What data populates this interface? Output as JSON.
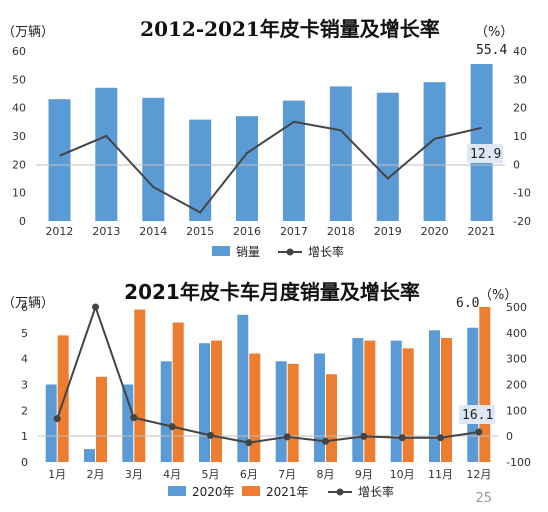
{
  "chart_data": [
    {
      "type": "bar+line",
      "title": "2012-2021年皮卡销量及增长率",
      "left_unit": "（万辆）",
      "right_unit": "（%）",
      "categories": [
        "2012",
        "2013",
        "2014",
        "2015",
        "2016",
        "2017",
        "2018",
        "2019",
        "2020",
        "2021"
      ],
      "series": [
        {
          "name": "销量",
          "kind": "bar",
          "axis": "left",
          "color": "#5b9bd5",
          "values": [
            43,
            47,
            43.5,
            35.8,
            37,
            42.5,
            47.5,
            45.3,
            49,
            55.4
          ]
        },
        {
          "name": "增长率",
          "kind": "line",
          "axis": "right",
          "color": "#444444",
          "values": [
            3,
            10,
            -8,
            -17,
            4,
            15,
            12,
            -5,
            9,
            12.9
          ]
        }
      ],
      "ylim_left": [
        0,
        60
      ],
      "yticks_left": [
        0,
        10,
        20,
        30,
        40,
        50,
        60
      ],
      "ylim_right": [
        -20,
        40
      ],
      "yticks_right": [
        -20,
        -10,
        0,
        10,
        20,
        30,
        40
      ],
      "annotations": [
        "55.4",
        "12.9"
      ],
      "legend_position": "bottom"
    },
    {
      "type": "bar+line",
      "title": "2021年皮卡车月度销量及增长率",
      "left_unit": "（万辆）",
      "right_unit": "（%）",
      "categories": [
        "1月",
        "2月",
        "3月",
        "4月",
        "5月",
        "6月",
        "7月",
        "8月",
        "9月",
        "10月",
        "11月",
        "12月"
      ],
      "series": [
        {
          "name": "2020年",
          "kind": "bar",
          "axis": "left",
          "color": "#5b9bd5",
          "values": [
            3.0,
            0.5,
            3.0,
            3.9,
            4.6,
            5.7,
            3.9,
            4.2,
            4.8,
            4.7,
            5.1,
            5.2
          ]
        },
        {
          "name": "2021年",
          "kind": "bar",
          "axis": "left",
          "color": "#ed7d31",
          "values": [
            4.9,
            3.3,
            5.9,
            5.4,
            4.7,
            4.2,
            3.8,
            3.4,
            4.7,
            4.4,
            4.8,
            6.0
          ]
        },
        {
          "name": "增长率",
          "kind": "line",
          "axis": "right",
          "color": "#444444",
          "values": [
            68,
            500,
            72,
            37,
            3,
            -25,
            -3,
            -20,
            -1,
            -6,
            -6,
            16.1
          ]
        }
      ],
      "ylim_left": [
        0,
        6
      ],
      "yticks_left": [
        0,
        1,
        2,
        3,
        4,
        5,
        6
      ],
      "ylim_right": [
        -100,
        500
      ],
      "yticks_right": [
        -100,
        0,
        100,
        200,
        300,
        400,
        500
      ],
      "annotations": [
        "6.0",
        "16.1"
      ],
      "legend_position": "bottom"
    }
  ],
  "page_number": "25"
}
